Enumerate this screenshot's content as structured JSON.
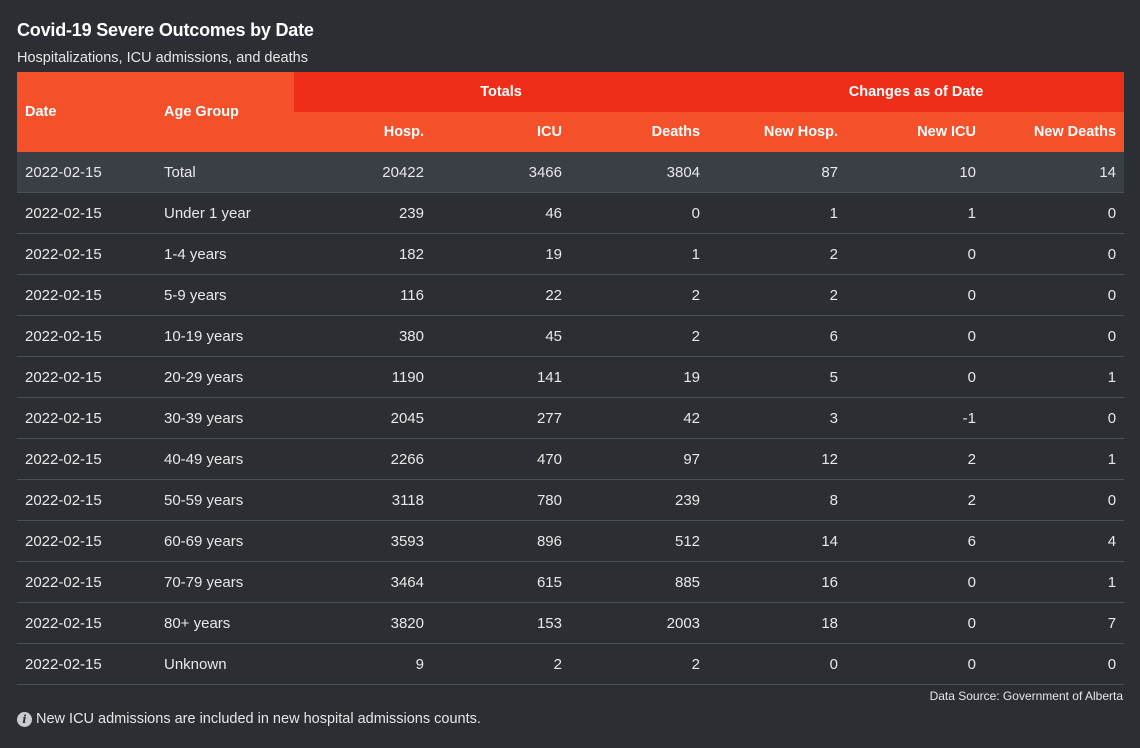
{
  "header": {
    "title": "Covid-19 Severe Outcomes by Date",
    "subtitle": "Hospitalizations, ICU admissions, and deaths"
  },
  "table": {
    "group_headers": [
      "Totals",
      "Changes as of Date"
    ],
    "columns": [
      "Date",
      "Age Group",
      "Hosp.",
      "ICU",
      "Deaths",
      "New Hosp.",
      "New ICU",
      "New Deaths"
    ],
    "rows": [
      [
        "2022-02-15",
        "Total",
        "20422",
        "3466",
        "3804",
        "87",
        "10",
        "14"
      ],
      [
        "2022-02-15",
        "Under 1 year",
        "239",
        "46",
        "0",
        "1",
        "1",
        "0"
      ],
      [
        "2022-02-15",
        "1-4 years",
        "182",
        "19",
        "1",
        "2",
        "0",
        "0"
      ],
      [
        "2022-02-15",
        "5-9 years",
        "116",
        "22",
        "2",
        "2",
        "0",
        "0"
      ],
      [
        "2022-02-15",
        "10-19 years",
        "380",
        "45",
        "2",
        "6",
        "0",
        "0"
      ],
      [
        "2022-02-15",
        "20-29 years",
        "1190",
        "141",
        "19",
        "5",
        "0",
        "1"
      ],
      [
        "2022-02-15",
        "30-39 years",
        "2045",
        "277",
        "42",
        "3",
        "-1",
        "0"
      ],
      [
        "2022-02-15",
        "40-49 years",
        "2266",
        "470",
        "97",
        "12",
        "2",
        "1"
      ],
      [
        "2022-02-15",
        "50-59 years",
        "3118",
        "780",
        "239",
        "8",
        "2",
        "0"
      ],
      [
        "2022-02-15",
        "60-69 years",
        "3593",
        "896",
        "512",
        "14",
        "6",
        "4"
      ],
      [
        "2022-02-15",
        "70-79 years",
        "3464",
        "615",
        "885",
        "16",
        "0",
        "1"
      ],
      [
        "2022-02-15",
        "80+ years",
        "3820",
        "153",
        "2003",
        "18",
        "0",
        "7"
      ],
      [
        "2022-02-15",
        "Unknown",
        "9",
        "2",
        "2",
        "0",
        "0",
        "0"
      ]
    ]
  },
  "footer": {
    "source": "Data Source: Government of Alberta",
    "note": "New ICU admissions are included in new hospital admissions counts.",
    "note_icon": "info-icon",
    "note_icon_glyph": "i"
  },
  "colors": {
    "background": "#2b2e33",
    "header_accent": "#f4502a",
    "group_header_accent": "#ee2e18",
    "total_row": "#3a3e45"
  }
}
